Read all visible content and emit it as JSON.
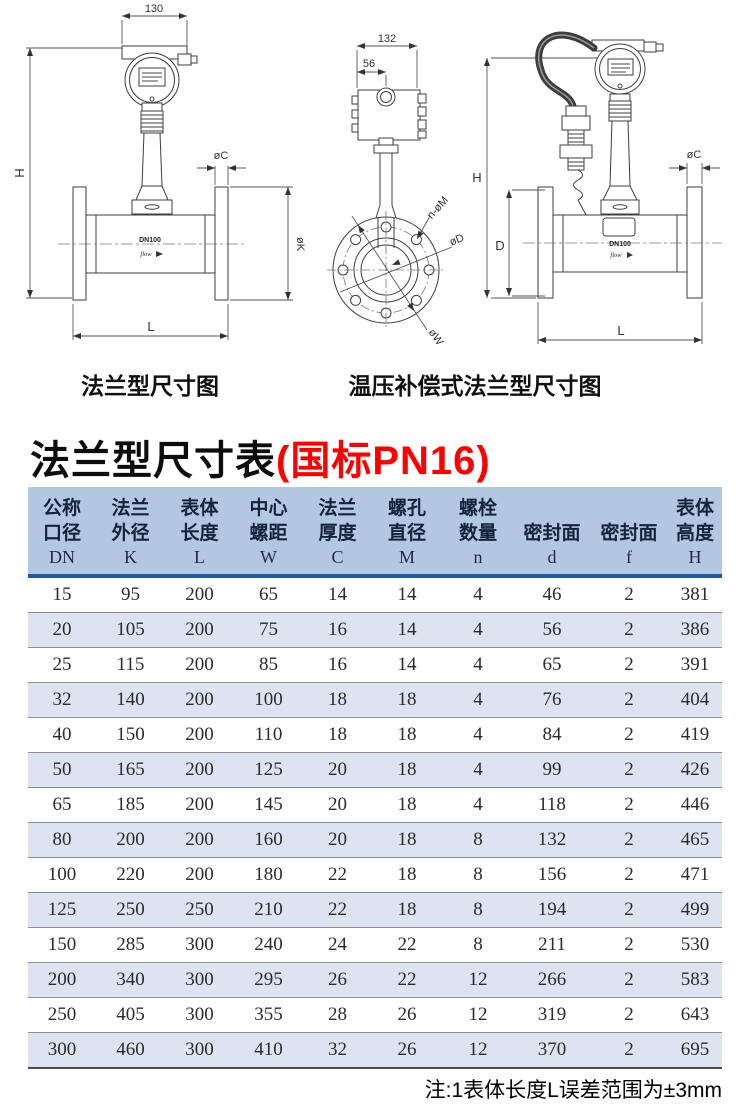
{
  "diagrams": {
    "left": {
      "caption": "法兰型尺寸图",
      "dim_width": "130",
      "dim_height": "H",
      "dim_length": "L",
      "dim_flange_thickness": "øC",
      "dim_flange_diameter": "øK",
      "body_label": "DN100",
      "flow_label": "flow"
    },
    "middle": {
      "dim_width": "132",
      "dim_offset": "56",
      "dim_bolt_holes": "n-øM",
      "dim_inner_diameter": "øD",
      "dim_bolt_circle": "øW"
    },
    "right": {
      "caption": "温压补偿式法兰型尺寸图",
      "dim_height": "H",
      "dim_body": "D",
      "dim_length": "L",
      "dim_flange_thickness": "øC",
      "body_label": "DN100",
      "flow_label": "flow"
    }
  },
  "title": {
    "main": "法兰型尺寸表",
    "highlight": "(国标PN16)"
  },
  "table": {
    "columns": [
      {
        "name_lines": [
          "公称",
          "口径"
        ],
        "code": "DN"
      },
      {
        "name_lines": [
          "法兰",
          "外径"
        ],
        "code": "K"
      },
      {
        "name_lines": [
          "表体",
          "长度"
        ],
        "code": "L"
      },
      {
        "name_lines": [
          "中心",
          "螺距"
        ],
        "code": "W"
      },
      {
        "name_lines": [
          "法兰",
          "厚度"
        ],
        "code": "C"
      },
      {
        "name_lines": [
          "螺孔",
          "直径"
        ],
        "code": "M"
      },
      {
        "name_lines": [
          "螺栓",
          "数量"
        ],
        "code": "n"
      },
      {
        "name_lines": [
          "密封面"
        ],
        "code": "d"
      },
      {
        "name_lines": [
          "密封面"
        ],
        "code": "f"
      },
      {
        "name_lines": [
          "表体",
          "高度"
        ],
        "code": "H"
      }
    ],
    "rows": [
      [
        15,
        95,
        200,
        65,
        14,
        14,
        4,
        46,
        2,
        381
      ],
      [
        20,
        105,
        200,
        75,
        16,
        14,
        4,
        56,
        2,
        386
      ],
      [
        25,
        115,
        200,
        85,
        16,
        14,
        4,
        65,
        2,
        391
      ],
      [
        32,
        140,
        200,
        100,
        18,
        18,
        4,
        76,
        2,
        404
      ],
      [
        40,
        150,
        200,
        110,
        18,
        18,
        4,
        84,
        2,
        419
      ],
      [
        50,
        165,
        200,
        125,
        20,
        18,
        4,
        99,
        2,
        426
      ],
      [
        65,
        185,
        200,
        145,
        20,
        18,
        4,
        118,
        2,
        446
      ],
      [
        80,
        200,
        200,
        160,
        20,
        18,
        8,
        132,
        2,
        465
      ],
      [
        100,
        220,
        200,
        180,
        22,
        18,
        8,
        156,
        2,
        471
      ],
      [
        125,
        250,
        250,
        210,
        22,
        18,
        8,
        194,
        2,
        499
      ],
      [
        150,
        285,
        300,
        240,
        24,
        22,
        8,
        211,
        2,
        530
      ],
      [
        200,
        340,
        300,
        295,
        26,
        22,
        12,
        266,
        2,
        583
      ],
      [
        250,
        405,
        300,
        355,
        28,
        26,
        12,
        319,
        2,
        643
      ],
      [
        300,
        460,
        300,
        410,
        32,
        26,
        12,
        370,
        2,
        695
      ]
    ]
  },
  "note": "注:1表体长度L误差范围为±3mm",
  "colors": {
    "title_highlight": "#ff0000",
    "header_bg": "#b4c7e0",
    "header_rule": "#1c5aa5",
    "row_alt_bg": "#dbe4f0"
  }
}
